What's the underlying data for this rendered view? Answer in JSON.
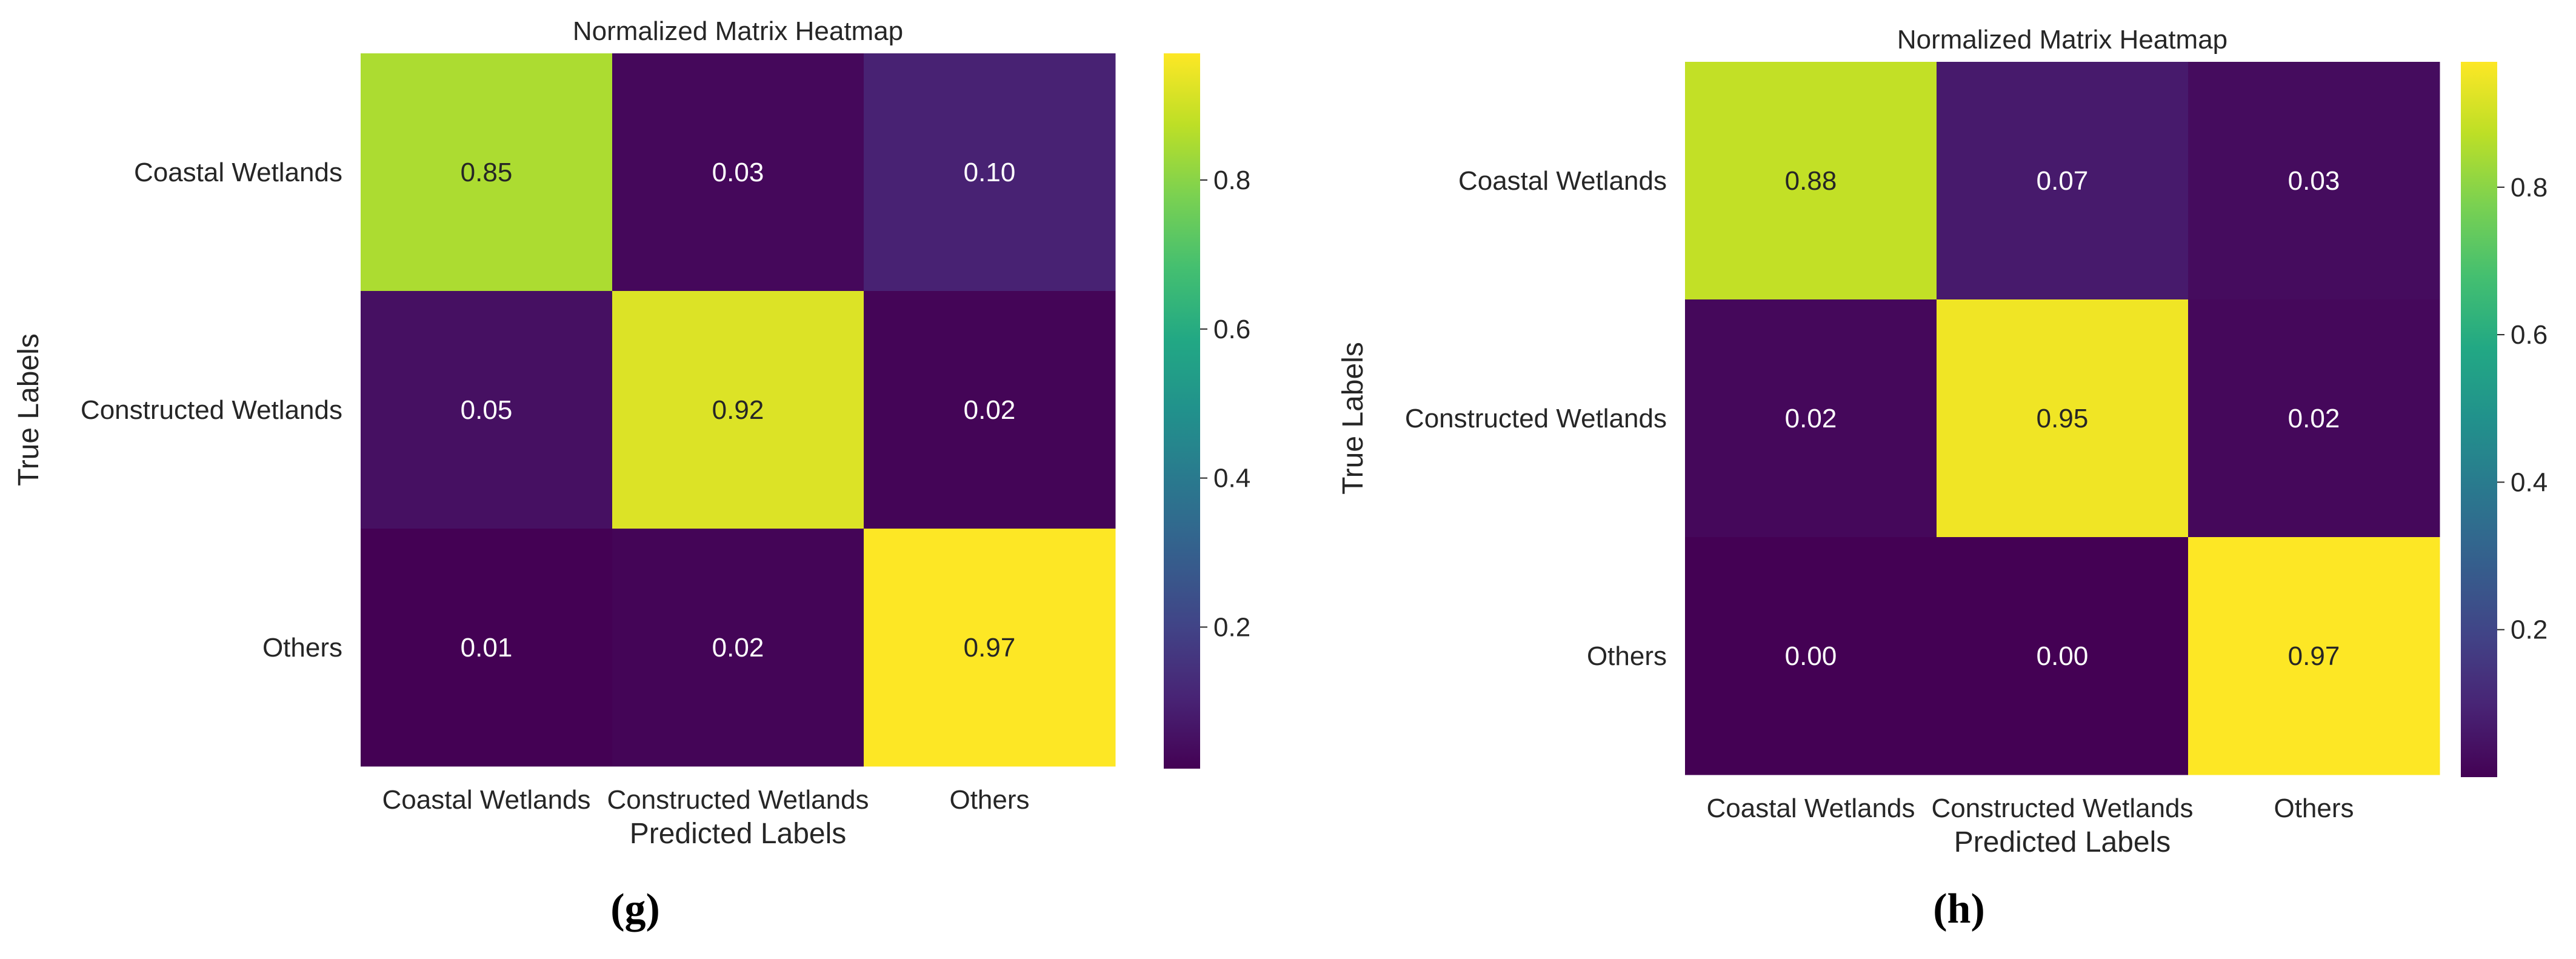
{
  "chart_data": [
    {
      "type": "heatmap",
      "panel_label": "(g)",
      "title": "Normalized Matrix Heatmap",
      "xlabel": "Predicted Labels",
      "ylabel": "True Labels",
      "x_categories": [
        "Coastal Wetlands",
        "Constructed Wetlands",
        "Others"
      ],
      "y_categories": [
        "Coastal Wetlands",
        "Constructed Wetlands",
        "Others"
      ],
      "values": [
        [
          0.85,
          0.03,
          0.1
        ],
        [
          0.05,
          0.92,
          0.02
        ],
        [
          0.01,
          0.02,
          0.97
        ]
      ],
      "annotations": [
        [
          "0.85",
          "0.03",
          "0.10"
        ],
        [
          "0.05",
          "0.92",
          "0.02"
        ],
        [
          "0.01",
          "0.02",
          "0.97"
        ]
      ],
      "colormap": "viridis",
      "vmin": 0.01,
      "vmax": 0.97,
      "colorbar_ticks": [
        0.2,
        0.4,
        0.6,
        0.8
      ],
      "colorbar_ticklabels": [
        "0.2",
        "0.4",
        "0.6",
        "0.8"
      ]
    },
    {
      "type": "heatmap",
      "panel_label": "(h)",
      "title": "Normalized Matrix Heatmap",
      "xlabel": "Predicted Labels",
      "ylabel": "True Labels",
      "x_categories": [
        "Coastal Wetlands",
        "Constructed Wetlands",
        "Others"
      ],
      "y_categories": [
        "Coastal Wetlands",
        "Constructed Wetlands",
        "Others"
      ],
      "values": [
        [
          0.88,
          0.07,
          0.03
        ],
        [
          0.02,
          0.95,
          0.02
        ],
        [
          0.0,
          0.0,
          0.97
        ]
      ],
      "annotations": [
        [
          "0.88",
          "0.07",
          "0.03"
        ],
        [
          "0.02",
          "0.95",
          "0.02"
        ],
        [
          "0.00",
          "0.00",
          "0.97"
        ]
      ],
      "colormap": "viridis",
      "vmin": 0.0,
      "vmax": 0.97,
      "colorbar_ticks": [
        0.2,
        0.4,
        0.6,
        0.8
      ],
      "colorbar_ticklabels": [
        "0.2",
        "0.4",
        "0.6",
        "0.8"
      ]
    }
  ]
}
